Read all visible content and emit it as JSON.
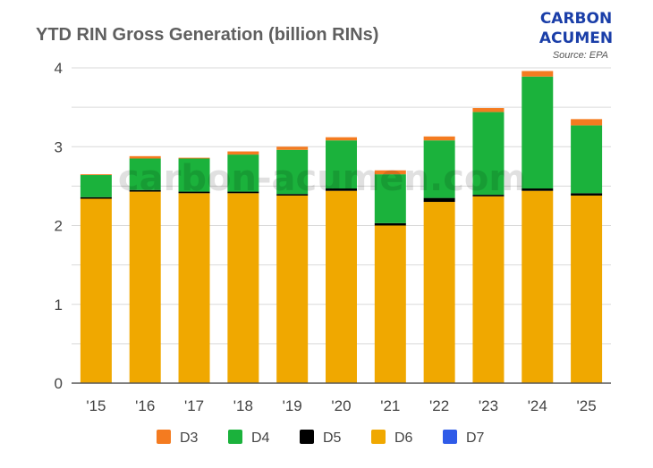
{
  "title": "YTD RIN Gross Generation (billion RINs)",
  "logo": {
    "line1": "CARBON",
    "line2": "ACUMEN"
  },
  "source": "Source: EPA",
  "watermark": "carbon-acumen.com",
  "colors": {
    "D3": "#f47b20",
    "D4": "#1bb23c",
    "D5": "#000000",
    "D6": "#f0a800",
    "D7": "#2f5be8",
    "grid": "#d9d9d9",
    "axis": "#555555"
  },
  "chart_data": {
    "type": "bar",
    "stacked": true,
    "categories": [
      "'15",
      "'16",
      "'17",
      "'18",
      "'19",
      "'20",
      "'21",
      "'22",
      "'23",
      "'24",
      "'25"
    ],
    "series": [
      {
        "name": "D6",
        "values": [
          2.34,
          2.43,
          2.41,
          2.41,
          2.38,
          2.44,
          2.0,
          2.3,
          2.37,
          2.44,
          2.38
        ]
      },
      {
        "name": "D5",
        "values": [
          0.02,
          0.02,
          0.02,
          0.02,
          0.02,
          0.03,
          0.03,
          0.05,
          0.02,
          0.03,
          0.03
        ]
      },
      {
        "name": "D4",
        "values": [
          0.28,
          0.4,
          0.42,
          0.47,
          0.56,
          0.61,
          0.62,
          0.73,
          1.05,
          1.42,
          0.86
        ]
      },
      {
        "name": "D3",
        "values": [
          0.01,
          0.03,
          0.01,
          0.04,
          0.04,
          0.04,
          0.05,
          0.05,
          0.05,
          0.07,
          0.08
        ]
      },
      {
        "name": "D7",
        "values": [
          0,
          0,
          0,
          0,
          0,
          0,
          0,
          0,
          0,
          0,
          0
        ]
      }
    ],
    "legend": [
      "D3",
      "D4",
      "D5",
      "D6",
      "D7"
    ],
    "legend_position": "bottom",
    "ylim": [
      0,
      4
    ],
    "yticks": [
      "0",
      "1",
      "2",
      "3",
      "4"
    ],
    "grid": true
  }
}
